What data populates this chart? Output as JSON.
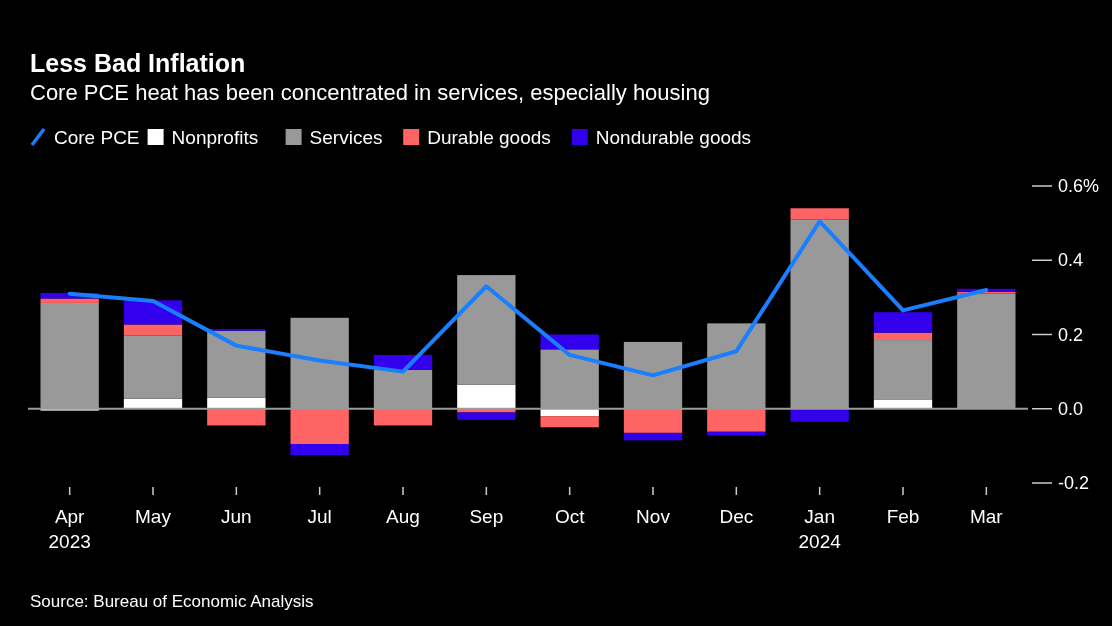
{
  "chart_data": {
    "type": "bar",
    "stacked": true,
    "title": "Less Bad Inflation",
    "subtitle": "Core PCE heat has been concentrated in services, especially housing",
    "categories": [
      "Apr\n2023",
      "May",
      "Jun",
      "Jul",
      "Aug",
      "Sep",
      "Oct",
      "Nov",
      "Dec",
      "Jan\n2024",
      "Feb",
      "Mar"
    ],
    "series": [
      {
        "name": "Core PCE",
        "type": "line",
        "color": "#1a7fff",
        "values": [
          0.31,
          0.29,
          0.17,
          0.13,
          0.1,
          0.33,
          0.145,
          0.09,
          0.155,
          0.505,
          0.265,
          0.32
        ]
      },
      {
        "name": "Nonprofits",
        "color": "#ffffff",
        "values": [
          -0.005,
          0.027,
          0.03,
          0,
          0,
          0.065,
          -0.02,
          0,
          0,
          0,
          0.025,
          0
        ]
      },
      {
        "name": "Services",
        "color": "#999999",
        "values": [
          0.285,
          0.17,
          0.18,
          0.245,
          0.105,
          0.295,
          0.16,
          0.18,
          0.23,
          0.51,
          0.16,
          0.31
        ]
      },
      {
        "name": "Durable goods",
        "color": "#ff6464",
        "values": [
          0.012,
          0.03,
          -0.045,
          -0.095,
          -0.045,
          -0.01,
          -0.03,
          -0.065,
          -0.062,
          0.03,
          0.02,
          0.005
        ]
      },
      {
        "name": "Nondurable goods",
        "color": "#3300ee",
        "values": [
          0.015,
          0.065,
          0.005,
          -0.03,
          0.04,
          -0.02,
          0.04,
          -0.02,
          -0.01,
          -0.035,
          0.055,
          0.008
        ]
      }
    ],
    "ylim": [
      -0.2,
      0.6
    ],
    "yticks": [
      {
        "value": 0.6,
        "label": "0.6%"
      },
      0.4,
      0.2,
      {
        "value": 0,
        "label": "0.0"
      },
      -0.2
    ],
    "legend": "top left",
    "annotations": [
      "Source: Bureau of Economic Analysis"
    ]
  }
}
